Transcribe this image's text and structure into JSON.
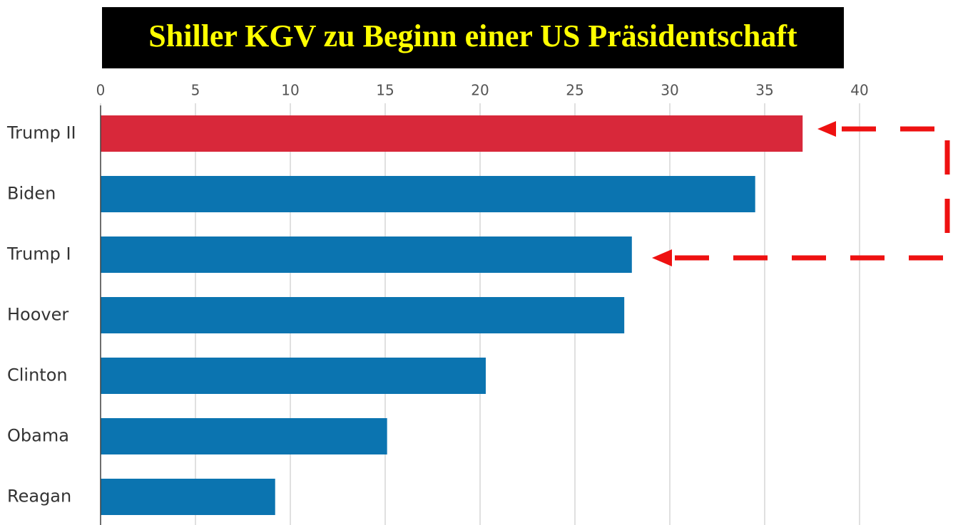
{
  "chart_data": {
    "type": "bar",
    "orientation": "horizontal",
    "title": "Shiller KGV zu Beginn einer US Präsidentschaft",
    "categories": [
      "Trump II",
      "Biden",
      "Trump I",
      "Hoover",
      "Clinton",
      "Obama",
      "Reagan"
    ],
    "values": [
      37,
      34.5,
      28,
      27.6,
      20.3,
      15.1,
      9.2
    ],
    "colors": [
      "#d8283a",
      "#0b74b0",
      "#0b74b0",
      "#0b74b0",
      "#0b74b0",
      "#0b74b0",
      "#0b74b0"
    ],
    "xlim": [
      0,
      40
    ],
    "xticks": [
      0,
      5,
      10,
      15,
      20,
      25,
      30,
      35,
      40
    ],
    "grid": true
  }
}
